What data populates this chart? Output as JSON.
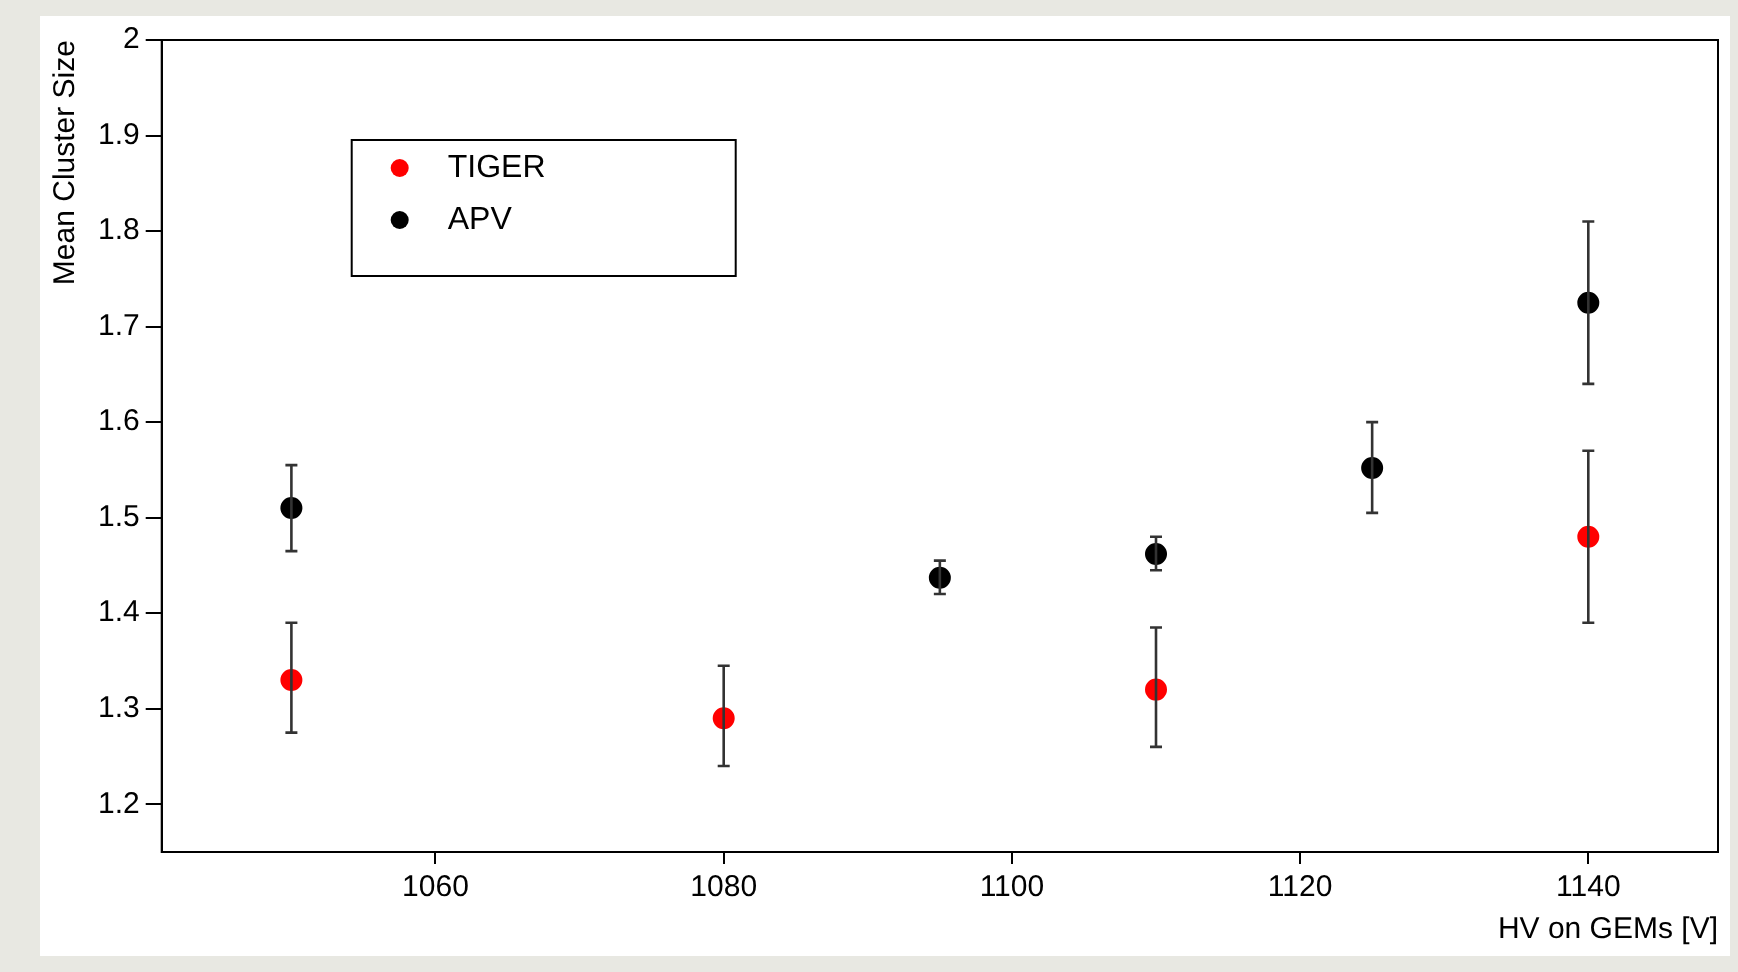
{
  "chart_data": {
    "type": "scatter",
    "xlabel": "HV on GEMs [V]",
    "ylabel": "Mean Cluster Size",
    "xlim": [
      1041,
      1149
    ],
    "xticks": [
      1060,
      1080,
      1100,
      1120,
      1140
    ],
    "ylim": [
      1.15,
      2
    ],
    "yticks": [
      1.2,
      1.3,
      1.4,
      1.5,
      1.6,
      1.7,
      1.8,
      1.9,
      2
    ],
    "grid": false,
    "legend": "top left",
    "marker": "circle",
    "series": [
      {
        "name": "TIGER",
        "color": "#ff0000",
        "x": [
          1050,
          1080,
          1110,
          1140
        ],
        "values": [
          1.33,
          1.29,
          1.32,
          1.48
        ],
        "errors": [
          [
            1.275,
            1.39
          ],
          [
            1.24,
            1.345
          ],
          [
            1.26,
            1.385
          ],
          [
            1.39,
            1.57
          ]
        ]
      },
      {
        "name": "APV",
        "color": "#000000",
        "x": [
          1050,
          1095,
          1110,
          1125,
          1140
        ],
        "values": [
          1.51,
          1.437,
          1.462,
          1.552,
          1.725
        ],
        "errors": [
          [
            1.465,
            1.555
          ],
          [
            1.42,
            1.455
          ],
          [
            1.445,
            1.48
          ],
          [
            1.505,
            1.6
          ],
          [
            1.64,
            1.81
          ]
        ]
      }
    ]
  }
}
